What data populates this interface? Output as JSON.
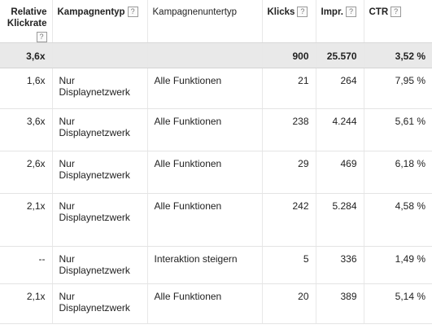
{
  "headers": {
    "relative_ctr": "Relative Klickrate",
    "campaign_type": "Kampagnentyp",
    "campaign_subtype": "Kampagnenuntertyp",
    "clicks": "Klicks",
    "impressions": "Impr.",
    "ctr": "CTR",
    "help_glyph": "?"
  },
  "total": {
    "relative_ctr": "3,6x",
    "clicks": "900",
    "impressions": "25.570",
    "ctr": "3,52 %"
  },
  "rows": [
    {
      "relative_ctr": "1,6x",
      "campaign_type": "Nur Displaynetzwerk",
      "campaign_subtype": "Alle Funktionen",
      "clicks": "21",
      "impressions": "264",
      "ctr": "7,95 %"
    },
    {
      "relative_ctr": "3,6x",
      "campaign_type": "Nur Displaynetzwerk",
      "campaign_subtype": "Alle Funktionen",
      "clicks": "238",
      "impressions": "4.244",
      "ctr": "5,61 %"
    },
    {
      "relative_ctr": "2,6x",
      "campaign_type": "Nur Displaynetzwerk",
      "campaign_subtype": "Alle Funktionen",
      "clicks": "29",
      "impressions": "469",
      "ctr": "6,18 %"
    },
    {
      "relative_ctr": "2,1x",
      "campaign_type": "Nur Displaynetzwerk",
      "campaign_subtype": "Alle Funktionen",
      "clicks": "242",
      "impressions": "5.284",
      "ctr": "4,58 %"
    },
    {
      "relative_ctr": "--",
      "campaign_type": "Nur Displaynetzwerk",
      "campaign_subtype": "Interaktion steigern",
      "clicks": "5",
      "impressions": "336",
      "ctr": "1,49 %"
    },
    {
      "relative_ctr": "2,1x",
      "campaign_type": "Nur Displaynetzwerk",
      "campaign_subtype": "Alle Funktionen",
      "clicks": "20",
      "impressions": "389",
      "ctr": "5,14 %"
    }
  ]
}
